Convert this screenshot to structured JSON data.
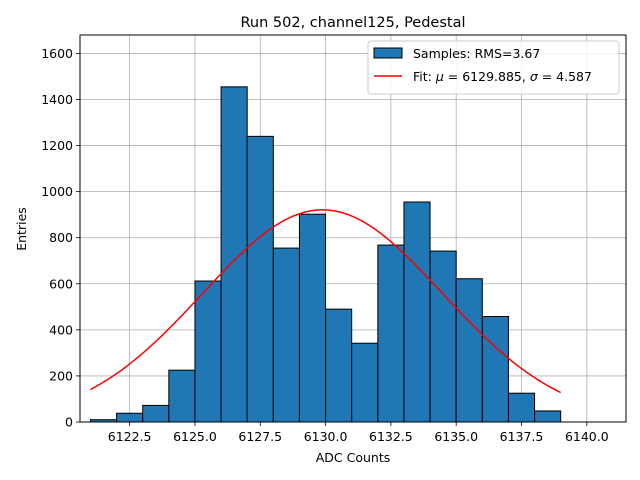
{
  "chart_data": {
    "type": "bar",
    "title": "Run 502, channel125, Pedestal",
    "xlabel": "ADC Counts",
    "ylabel": "Entries",
    "xlim": [
      6120.6,
      6141.5
    ],
    "ylim": [
      0,
      1680
    ],
    "grid": true,
    "legend_position": "top-right",
    "x_ticks": [
      6122.5,
      6125.0,
      6127.5,
      6130.0,
      6132.5,
      6135.0,
      6137.5,
      6140.0
    ],
    "x_tick_labels": [
      "6122.5",
      "6125.0",
      "6127.5",
      "6130.0",
      "6132.5",
      "6135.0",
      "6137.5",
      "6140.0"
    ],
    "y_ticks": [
      0,
      200,
      400,
      600,
      800,
      1000,
      1200,
      1400,
      1600
    ],
    "y_tick_labels": [
      "0",
      "200",
      "400",
      "600",
      "800",
      "1000",
      "1200",
      "1400",
      "1600"
    ],
    "histogram": {
      "name": "Samples: RMS=3.67",
      "color": "#1f77b4",
      "edge_color": "#000000",
      "bins": [
        {
          "lo": 6121.0,
          "hi": 6122.0,
          "count": 10
        },
        {
          "lo": 6122.0,
          "hi": 6123.0,
          "count": 38
        },
        {
          "lo": 6123.0,
          "hi": 6124.0,
          "count": 72
        },
        {
          "lo": 6124.0,
          "hi": 6125.0,
          "count": 225
        },
        {
          "lo": 6125.0,
          "hi": 6126.0,
          "count": 612
        },
        {
          "lo": 6126.0,
          "hi": 6127.0,
          "count": 1455
        },
        {
          "lo": 6127.0,
          "hi": 6128.0,
          "count": 1240
        },
        {
          "lo": 6128.0,
          "hi": 6129.0,
          "count": 755
        },
        {
          "lo": 6129.0,
          "hi": 6130.0,
          "count": 902
        },
        {
          "lo": 6130.0,
          "hi": 6131.0,
          "count": 490
        },
        {
          "lo": 6131.0,
          "hi": 6132.0,
          "count": 342
        },
        {
          "lo": 6132.0,
          "hi": 6133.0,
          "count": 768
        },
        {
          "lo": 6133.0,
          "hi": 6134.0,
          "count": 955
        },
        {
          "lo": 6134.0,
          "hi": 6135.0,
          "count": 742
        },
        {
          "lo": 6135.0,
          "hi": 6136.0,
          "count": 622
        },
        {
          "lo": 6136.0,
          "hi": 6137.0,
          "count": 458
        },
        {
          "lo": 6137.0,
          "hi": 6138.0,
          "count": 125
        },
        {
          "lo": 6138.0,
          "hi": 6139.0,
          "count": 48
        }
      ]
    },
    "fit": {
      "name": "Fit: μ = 6129.885, σ = 4.587",
      "legend_prefix": "Fit: ",
      "legend_mu_symbol": "μ",
      "legend_mid": " = 6129.885, ",
      "legend_sigma_symbol": "σ",
      "legend_suffix": " = 4.587",
      "mu": 6129.885,
      "sigma": 4.587,
      "amplitude": 921,
      "x_range": [
        6121.0,
        6139.0
      ],
      "color": "#ff0000"
    }
  }
}
